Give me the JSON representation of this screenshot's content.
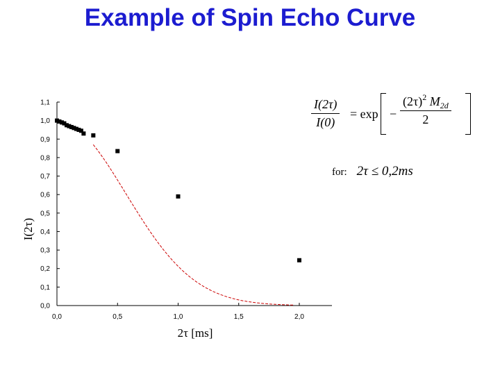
{
  "slide": {
    "title": "Example of Spin Echo Curve"
  },
  "formula": {
    "lhs_num": "I(2τ)",
    "lhs_den": "I(0)",
    "equals_exp": "= exp",
    "minus": "−",
    "rhs_num_base": "(2τ)",
    "rhs_num_exp": "2",
    "rhs_num_M": "M",
    "rhs_num_sub": "2d",
    "rhs_den": "2"
  },
  "condition": {
    "for_label": "for:",
    "expr": "2τ  ≤  0,2ms"
  },
  "chart_data": {
    "type": "scatter",
    "xlabel": "2τ [ms]",
    "ylabel": "I(2τ)",
    "xlim": [
      0.0,
      2.15
    ],
    "ylim": [
      0.0,
      1.1
    ],
    "xticks": [
      "0,0",
      "0,5",
      "1,0",
      "1,5",
      "2,0"
    ],
    "xtick_values": [
      0.0,
      0.5,
      1.0,
      1.5,
      2.0
    ],
    "yticks": [
      "0,0",
      "0,1",
      "0,2",
      "0,3",
      "0,4",
      "0,5",
      "0,6",
      "0,7",
      "0,8",
      "0,9",
      "1,0",
      "1,1"
    ],
    "ytick_values": [
      0.0,
      0.1,
      0.2,
      0.3,
      0.4,
      0.5,
      0.6,
      0.7,
      0.8,
      0.9,
      1.0,
      1.1
    ],
    "grid": false,
    "colors": {
      "points": "#000000",
      "fit": "#cc0000",
      "title": "#1c1cd0"
    },
    "series": [
      {
        "type": "scatter",
        "x": [
          0.0,
          0.02,
          0.04,
          0.06,
          0.08,
          0.1,
          0.12,
          0.14,
          0.16,
          0.18,
          0.2,
          0.22,
          0.3,
          0.5,
          1.0,
          2.0
        ],
        "y": [
          1.0,
          0.995,
          0.99,
          0.985,
          0.975,
          0.97,
          0.965,
          0.96,
          0.955,
          0.95,
          0.945,
          0.93,
          0.92,
          0.835,
          0.59,
          0.245
        ]
      },
      {
        "type": "line",
        "style": "dashed",
        "M2d": 3.1,
        "x_range": [
          0.3,
          1.95
        ]
      }
    ]
  }
}
